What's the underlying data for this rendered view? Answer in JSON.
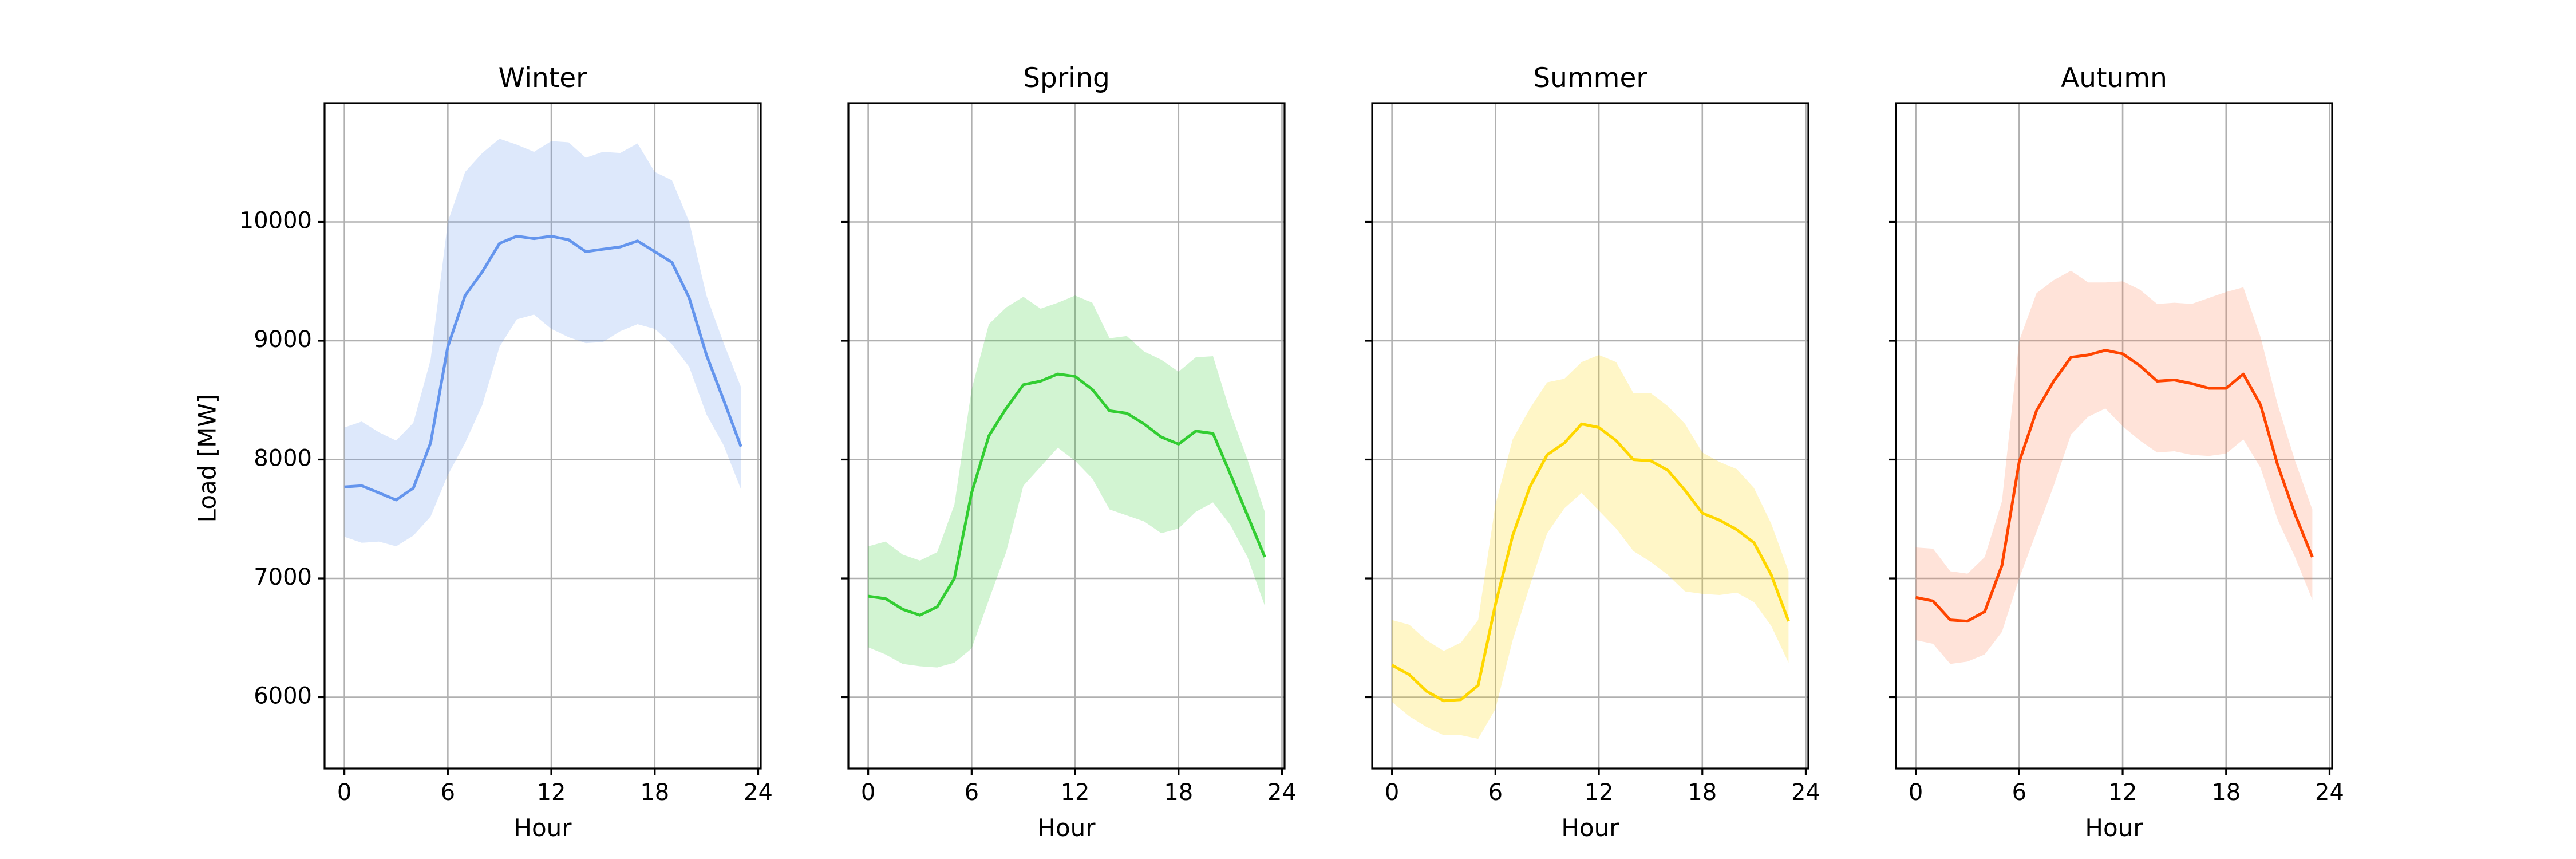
{
  "chart_data": {
    "type": "line",
    "x_label": "Hour",
    "y_label": "Load [MW]",
    "x_ticks": [
      0,
      6,
      12,
      18,
      24
    ],
    "y_ticks": [
      6000,
      7000,
      8000,
      9000,
      10000
    ],
    "xlim": [
      -1.15,
      24.15
    ],
    "ylim": [
      5400,
      11000
    ],
    "grid": true,
    "shared_y": true,
    "hours": [
      0,
      1,
      2,
      3,
      4,
      5,
      6,
      7,
      8,
      9,
      10,
      11,
      12,
      13,
      14,
      15,
      16,
      17,
      18,
      19,
      20,
      21,
      22,
      23
    ],
    "panels": [
      {
        "title": "Winter",
        "color": "#6495ed",
        "band_color": "#6495ed",
        "mean": [
          7770,
          7780,
          7720,
          7660,
          7760,
          8140,
          8950,
          9380,
          9580,
          9820,
          9880,
          9860,
          9880,
          9850,
          9750,
          9770,
          9790,
          9840,
          9750,
          9660,
          9360,
          8880,
          8500,
          8110
        ],
        "upper": [
          8270,
          8320,
          8230,
          8160,
          8310,
          8840,
          10000,
          10420,
          10580,
          10700,
          10650,
          10590,
          10680,
          10670,
          10540,
          10590,
          10580,
          10660,
          10420,
          10350,
          10000,
          9380,
          8980,
          8610
        ],
        "lower": [
          7350,
          7300,
          7310,
          7270,
          7360,
          7520,
          7870,
          8140,
          8460,
          8950,
          9180,
          9220,
          9100,
          9030,
          8980,
          8990,
          9080,
          9140,
          9100,
          8970,
          8780,
          8380,
          8120,
          7750
        ]
      },
      {
        "title": "Spring",
        "color": "#32cd32",
        "band_color": "#32cd32",
        "mean": [
          6850,
          6830,
          6740,
          6690,
          6760,
          7000,
          7720,
          8200,
          8430,
          8630,
          8660,
          8720,
          8700,
          8590,
          8410,
          8390,
          8300,
          8190,
          8130,
          8240,
          8220,
          7880,
          7530,
          7180
        ],
        "upper": [
          7270,
          7310,
          7200,
          7150,
          7220,
          7620,
          8590,
          9140,
          9280,
          9370,
          9270,
          9320,
          9380,
          9320,
          9020,
          9040,
          8910,
          8840,
          8740,
          8860,
          8870,
          8400,
          8000,
          7560
        ],
        "lower": [
          6420,
          6360,
          6280,
          6260,
          6250,
          6290,
          6410,
          6820,
          7220,
          7780,
          7940,
          8100,
          7990,
          7840,
          7580,
          7530,
          7480,
          7380,
          7420,
          7560,
          7640,
          7450,
          7180,
          6770
        ]
      },
      {
        "title": "Summer",
        "color": "#ffd700",
        "band_color": "#ffd700",
        "mean": [
          6270,
          6190,
          6050,
          5970,
          5980,
          6100,
          6780,
          7360,
          7770,
          8040,
          8140,
          8300,
          8270,
          8160,
          8000,
          7990,
          7910,
          7740,
          7550,
          7490,
          7410,
          7300,
          7030,
          6640
        ],
        "upper": [
          6650,
          6610,
          6480,
          6390,
          6460,
          6650,
          7620,
          8170,
          8430,
          8650,
          8680,
          8820,
          8880,
          8820,
          8560,
          8560,
          8450,
          8300,
          8060,
          7980,
          7920,
          7760,
          7460,
          7060
        ],
        "lower": [
          5960,
          5840,
          5750,
          5680,
          5680,
          5650,
          5900,
          6480,
          6940,
          7380,
          7590,
          7720,
          7570,
          7420,
          7230,
          7140,
          7030,
          6890,
          6870,
          6860,
          6880,
          6800,
          6600,
          6290
        ]
      },
      {
        "title": "Autumn",
        "color": "#ff4500",
        "band_color": "#ff7f50",
        "mean": [
          6840,
          6810,
          6650,
          6640,
          6720,
          7110,
          7980,
          8410,
          8660,
          8860,
          8880,
          8920,
          8890,
          8790,
          8660,
          8670,
          8640,
          8600,
          8600,
          8720,
          8460,
          7950,
          7540,
          7180
        ],
        "upper": [
          7260,
          7250,
          7060,
          7040,
          7180,
          7650,
          9000,
          9400,
          9510,
          9590,
          9490,
          9490,
          9500,
          9430,
          9310,
          9320,
          9310,
          9360,
          9410,
          9450,
          9030,
          8460,
          7990,
          7580
        ],
        "lower": [
          6480,
          6450,
          6280,
          6300,
          6360,
          6550,
          7000,
          7390,
          7780,
          8210,
          8360,
          8430,
          8280,
          8160,
          8060,
          8070,
          8040,
          8030,
          8050,
          8170,
          7930,
          7490,
          7180,
          6820
        ]
      }
    ]
  }
}
